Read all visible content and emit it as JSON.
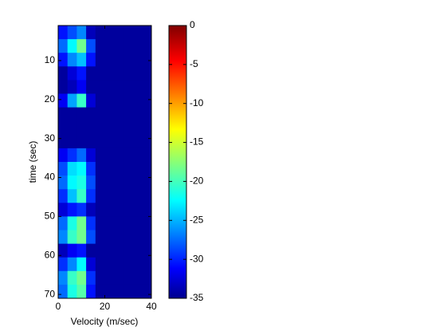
{
  "chart_data": {
    "type": "heatmap",
    "xlabel": "Velocity (m/sec)",
    "ylabel": "time (sec)",
    "x": [
      2,
      6,
      10,
      14,
      18,
      22,
      26,
      30,
      34,
      38
    ],
    "y": [
      2.75,
      6.25,
      9.75,
      13.25,
      16.75,
      20.25,
      23.75,
      27.25,
      30.75,
      34.25,
      37.75,
      41.25,
      44.75,
      48.25,
      51.75,
      55.25,
      58.75,
      62.25,
      65.75,
      69.25
    ],
    "values": [
      [
        -30,
        -28,
        -26,
        -33,
        -34,
        -34,
        -34,
        -34,
        -34,
        -34
      ],
      [
        -27,
        -22,
        -18,
        -28,
        -34,
        -34,
        -34,
        -34,
        -34,
        -34
      ],
      [
        -30,
        -26,
        -24,
        -30,
        -34,
        -34,
        -34,
        -34,
        -34,
        -34
      ],
      [
        -34,
        -32,
        -30,
        -34,
        -34,
        -34,
        -34,
        -34,
        -34,
        -34
      ],
      [
        -34,
        -33,
        -31,
        -34,
        -34,
        -34,
        -34,
        -34,
        -34,
        -34
      ],
      [
        -31,
        -25,
        -20,
        -32,
        -34,
        -34,
        -34,
        -34,
        -34,
        -34
      ],
      [
        -34,
        -34,
        -34,
        -34,
        -34,
        -34,
        -34,
        -34,
        -34,
        -34
      ],
      [
        -34,
        -34,
        -34,
        -34,
        -34,
        -34,
        -34,
        -34,
        -34,
        -34
      ],
      [
        -34,
        -34,
        -34,
        -34,
        -34,
        -34,
        -34,
        -34,
        -34,
        -34
      ],
      [
        -31,
        -29,
        -27,
        -32,
        -34,
        -34,
        -34,
        -34,
        -34,
        -34
      ],
      [
        -28,
        -23,
        -22,
        -29,
        -34,
        -34,
        -34,
        -34,
        -34,
        -34
      ],
      [
        -27,
        -22,
        -21,
        -28,
        -34,
        -34,
        -34,
        -34,
        -34,
        -34
      ],
      [
        -29,
        -24,
        -20,
        -29,
        -34,
        -34,
        -34,
        -34,
        -34,
        -34
      ],
      [
        -32,
        -30,
        -29,
        -33,
        -34,
        -34,
        -34,
        -34,
        -34,
        -34
      ],
      [
        -27,
        -21,
        -18,
        -29,
        -34,
        -34,
        -34,
        -34,
        -34,
        -34
      ],
      [
        -26,
        -20,
        -18,
        -28,
        -34,
        -34,
        -34,
        -34,
        -34,
        -34
      ],
      [
        -33,
        -31,
        -30,
        -34,
        -34,
        -34,
        -34,
        -34,
        -34,
        -34
      ],
      [
        -29,
        -26,
        -22,
        -32,
        -34,
        -34,
        -34,
        -34,
        -34,
        -34
      ],
      [
        -26,
        -20,
        -18,
        -29,
        -34,
        -34,
        -34,
        -34,
        -34,
        -34
      ],
      [
        -27,
        -21,
        -19,
        -30,
        -34,
        -34,
        -34,
        -34,
        -34,
        -34
      ]
    ],
    "xlim": [
      0,
      40
    ],
    "xticks": [
      0,
      20,
      40
    ],
    "ylim": [
      1,
      71
    ],
    "yticks": [
      10,
      20,
      30,
      40,
      50,
      60,
      70
    ],
    "y_reversed": true,
    "colormap": "jet",
    "clim": [
      -35,
      0
    ],
    "cticks": [
      0,
      -5,
      -10,
      -15,
      -20,
      -25,
      -30,
      -35
    ]
  }
}
